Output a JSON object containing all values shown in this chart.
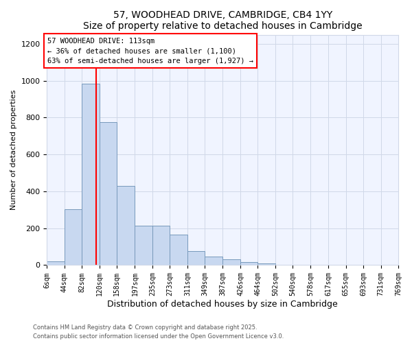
{
  "title": "57, WOODHEAD DRIVE, CAMBRIDGE, CB4 1YY",
  "subtitle": "Size of property relative to detached houses in Cambridge",
  "xlabel": "Distribution of detached houses by size in Cambridge",
  "ylabel": "Number of detached properties",
  "background_color": "#ffffff",
  "plot_bg_color": "#f0f4ff",
  "bar_color": "#c8d8f0",
  "bar_edge_color": "#7799bb",
  "grid_color": "#d0d8e8",
  "bin_edges": [
    6,
    44,
    82,
    120,
    158,
    197,
    235,
    273,
    311,
    349,
    387,
    426,
    464,
    502,
    540,
    578,
    617,
    655,
    693,
    731,
    769
  ],
  "bin_labels": [
    "6sqm",
    "44sqm",
    "82sqm",
    "120sqm",
    "158sqm",
    "197sqm",
    "235sqm",
    "273sqm",
    "311sqm",
    "349sqm",
    "387sqm",
    "426sqm",
    "464sqm",
    "502sqm",
    "540sqm",
    "578sqm",
    "617sqm",
    "655sqm",
    "693sqm",
    "731sqm",
    "769sqm"
  ],
  "counts": [
    20,
    305,
    985,
    775,
    430,
    215,
    215,
    165,
    75,
    48,
    32,
    15,
    8,
    3,
    2,
    1,
    0,
    0,
    0,
    2
  ],
  "red_line_x": 113,
  "annotation_title": "57 WOODHEAD DRIVE: 113sqm",
  "annotation_line1": "← 36% of detached houses are smaller (1,100)",
  "annotation_line2": "63% of semi-detached houses are larger (1,927) →",
  "footnote1": "Contains HM Land Registry data © Crown copyright and database right 2025.",
  "footnote2": "Contains public sector information licensed under the Open Government Licence v3.0.",
  "ylim": [
    0,
    1250
  ],
  "yticks": [
    0,
    200,
    400,
    600,
    800,
    1000,
    1200
  ]
}
